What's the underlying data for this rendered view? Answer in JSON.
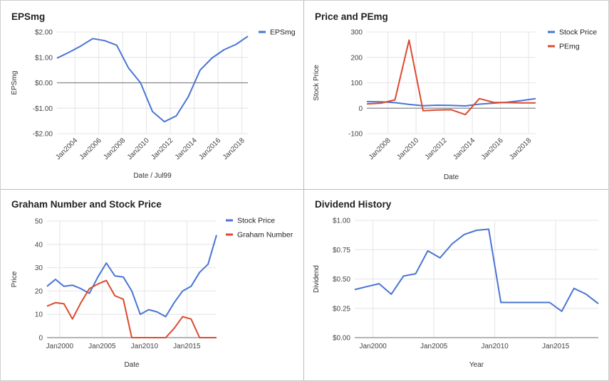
{
  "colors": {
    "blue": "#4a75d3",
    "red": "#dc4a2f",
    "grid": "#e4e4e4",
    "zero": "#888888"
  },
  "chart_data": [
    {
      "type": "line",
      "title": "EPSmg",
      "xlabel": "Date / Jul99",
      "ylabel": "EPSmg",
      "xlim": [
        2002.5,
        2018.5
      ],
      "ylim": [
        -2,
        2
      ],
      "yticks": [
        -2,
        -1,
        0,
        1,
        2
      ],
      "ytick_labels": [
        "-$2.00",
        "-$1.00",
        "$0.00",
        "$1.00",
        "$2.00"
      ],
      "xticks": [
        2004,
        2006,
        2008,
        2010,
        2012,
        2014,
        2016,
        2018
      ],
      "xtick_labels": [
        "Jan2004",
        "Jan2006",
        "Jan2008",
        "Jan2010",
        "Jan2012",
        "Jan2014",
        "Jan2016",
        "Jan2018"
      ],
      "zero_line": true,
      "legend": "top-right",
      "series": [
        {
          "name": "EPSmg",
          "color": "#4a75d3",
          "x": [
            2002.5,
            2003.5,
            2004.5,
            2005.5,
            2006.5,
            2007.5,
            2008.5,
            2009.5,
            2010.5,
            2011.5,
            2012.5,
            2013.5,
            2014.5,
            2015.5,
            2016.5,
            2017.5,
            2018.5
          ],
          "y": [
            0.97,
            1.2,
            1.45,
            1.74,
            1.66,
            1.48,
            0.58,
            0.0,
            -1.13,
            -1.53,
            -1.3,
            -0.55,
            0.5,
            0.98,
            1.3,
            1.51,
            1.83
          ]
        }
      ]
    },
    {
      "type": "line",
      "title": "Price and PEmg",
      "xlabel": "Date",
      "ylabel": "Stock Price",
      "xlim": [
        2006.5,
        2018.5
      ],
      "ylim": [
        -100,
        300
      ],
      "yticks": [
        -100,
        0,
        100,
        200,
        300
      ],
      "ytick_labels": [
        "-100",
        "0",
        "100",
        "200",
        "300"
      ],
      "xticks": [
        2008,
        2010,
        2012,
        2014,
        2016,
        2018
      ],
      "xtick_labels": [
        "Jan2008",
        "Jan2010",
        "Jan2012",
        "Jan2014",
        "Jan2016",
        "Jan2018"
      ],
      "zero_line": true,
      "legend": "top-right",
      "series": [
        {
          "name": "Stock Price",
          "color": "#4a75d3",
          "x": [
            2006.5,
            2007.5,
            2008.5,
            2009.5,
            2010.5,
            2011.5,
            2012.5,
            2013.5,
            2014.5,
            2015.5,
            2016.5,
            2017.5,
            2018.5
          ],
          "y": [
            26,
            25,
            22,
            15,
            10,
            12,
            11,
            9,
            16,
            20,
            24,
            30,
            38
          ]
        },
        {
          "name": "PEmg",
          "color": "#dc4a2f",
          "x": [
            2006.5,
            2007.5,
            2008.5,
            2009.5,
            2010.5,
            2011.5,
            2012.5,
            2013.5,
            2014.5,
            2015.5,
            2016.5,
            2017.5,
            2018.5
          ],
          "y": [
            17,
            20,
            33,
            268,
            -10,
            -7,
            -6,
            -25,
            38,
            23,
            22,
            21,
            21
          ]
        }
      ]
    },
    {
      "type": "line",
      "title": "Graham Number and Stock Price",
      "xlabel": "Date",
      "ylabel": "Price",
      "xlim": [
        1998.5,
        2018.5
      ],
      "ylim": [
        0,
        50
      ],
      "yticks": [
        0,
        10,
        20,
        30,
        40,
        50
      ],
      "ytick_labels": [
        "0",
        "10",
        "20",
        "30",
        "40",
        "50"
      ],
      "xticks": [
        2000,
        2005,
        2010,
        2015
      ],
      "xtick_labels": [
        "Jan2000",
        "Jan2005",
        "Jan2010",
        "Jan2015"
      ],
      "legend": "top-right",
      "series": [
        {
          "name": "Stock Price",
          "color": "#4a75d3",
          "x": [
            1998.5,
            1999.5,
            2000.5,
            2001.5,
            2002.5,
            2003.5,
            2004.5,
            2005.5,
            2006.5,
            2007.5,
            2008.5,
            2009.5,
            2010.5,
            2011.5,
            2012.5,
            2013.5,
            2014.5,
            2015.5,
            2016.5,
            2017.5,
            2018.5
          ],
          "y": [
            22,
            25,
            22,
            22.5,
            21,
            19,
            26,
            32,
            26.5,
            26,
            20,
            10,
            12,
            11,
            9,
            15,
            20,
            22,
            28,
            31.5,
            44
          ]
        },
        {
          "name": "Graham Number",
          "color": "#dc4a2f",
          "x": [
            1998.5,
            1999.5,
            2000.5,
            2001.5,
            2002.5,
            2003.5,
            2004.5,
            2005.5,
            2006.5,
            2007.5,
            2008.5,
            2009.5,
            2010.5,
            2011.5,
            2012.5,
            2013.5,
            2014.5,
            2015.5,
            2016.5,
            2017.5,
            2018.5
          ],
          "y": [
            13.5,
            15,
            14.5,
            8,
            15,
            21,
            23,
            24.5,
            18,
            16.5,
            0,
            0,
            0,
            0,
            0,
            4,
            9,
            8,
            0,
            0,
            0
          ]
        }
      ]
    },
    {
      "type": "line",
      "title": "Dividend History",
      "xlabel": "Year",
      "ylabel": "Dividend",
      "xlim": [
        1998.5,
        2018.5
      ],
      "ylim": [
        0,
        1
      ],
      "yticks": [
        0,
        0.25,
        0.5,
        0.75,
        1
      ],
      "ytick_labels": [
        "$0.00",
        "$0.25",
        "$0.50",
        "$0.75",
        "$1.00"
      ],
      "xticks": [
        2000,
        2005,
        2010,
        2015
      ],
      "xtick_labels": [
        "Jan2000",
        "Jan2005",
        "Jan2010",
        "Jan2015"
      ],
      "legend": "none",
      "series": [
        {
          "name": "",
          "color": "#4a75d3",
          "x": [
            1998.5,
            1999.5,
            2000.5,
            2001.5,
            2002.5,
            2003.5,
            2004.5,
            2005.5,
            2006.5,
            2007.5,
            2008.5,
            2009.5,
            2010.5,
            2011.5,
            2012.5,
            2013.5,
            2014.5,
            2015.5,
            2016.5,
            2017.5,
            2018.5
          ],
          "y": [
            0.41,
            0.435,
            0.46,
            0.37,
            0.525,
            0.545,
            0.74,
            0.68,
            0.8,
            0.88,
            0.915,
            0.925,
            0.3,
            0.3,
            0.3,
            0.3,
            0.3,
            0.225,
            0.42,
            0.37,
            0.29
          ]
        }
      ]
    }
  ]
}
